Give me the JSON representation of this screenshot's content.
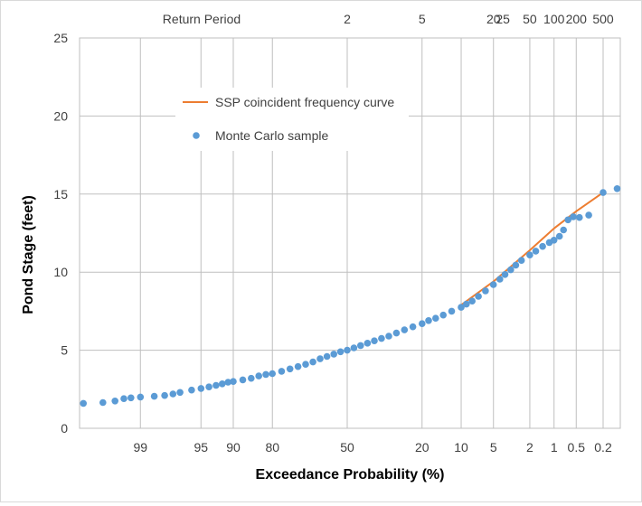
{
  "chart_data": {
    "type": "scatter",
    "title": "",
    "xlabel": "Exceedance Probability (%)",
    "ylabel": "Pond Stage (feet)",
    "x_scale": "normal-probability (reversed)",
    "ylim": [
      0,
      25
    ],
    "y_ticks": [
      0,
      5,
      10,
      15,
      20,
      25
    ],
    "x_ticks": [
      "99",
      "95",
      "90",
      "80",
      "50",
      "20",
      "10",
      "5",
      "2",
      "1",
      "0.5",
      "0.2"
    ],
    "top_axis": {
      "label": "Return Period",
      "ticks": [
        "2",
        "5",
        "25",
        "20",
        "50",
        "100",
        "200",
        "500"
      ]
    },
    "grid": true,
    "legend_position": "upper-left",
    "series": [
      {
        "name": "SSP coincident frequency curve",
        "kind": "line",
        "color": "#ed7d31",
        "points": [
          [
            10,
            7.9
          ],
          [
            5,
            9.4
          ],
          [
            2,
            11.4
          ],
          [
            1,
            12.8
          ],
          [
            0.5,
            13.9
          ],
          [
            0.2,
            15.1
          ]
        ]
      },
      {
        "name": "Monte Carlo sample",
        "kind": "scatter",
        "color": "#5b9bd5",
        "points": [
          [
            99.85,
            1.6
          ],
          [
            99.7,
            1.65
          ],
          [
            99.55,
            1.75
          ],
          [
            99.4,
            1.9
          ],
          [
            99.25,
            1.95
          ],
          [
            99,
            2.0
          ],
          [
            98.5,
            2.05
          ],
          [
            98,
            2.1
          ],
          [
            97.5,
            2.2
          ],
          [
            97,
            2.3
          ],
          [
            96,
            2.45
          ],
          [
            95,
            2.55
          ],
          [
            94,
            2.65
          ],
          [
            93,
            2.75
          ],
          [
            92,
            2.85
          ],
          [
            91,
            2.95
          ],
          [
            90,
            3.0
          ],
          [
            88,
            3.1
          ],
          [
            86,
            3.2
          ],
          [
            84,
            3.35
          ],
          [
            82,
            3.45
          ],
          [
            80,
            3.5
          ],
          [
            77,
            3.65
          ],
          [
            74,
            3.8
          ],
          [
            71,
            3.95
          ],
          [
            68,
            4.1
          ],
          [
            65,
            4.25
          ],
          [
            62,
            4.45
          ],
          [
            59,
            4.6
          ],
          [
            56,
            4.75
          ],
          [
            53,
            4.9
          ],
          [
            50,
            5.0
          ],
          [
            47,
            5.15
          ],
          [
            44,
            5.3
          ],
          [
            41,
            5.45
          ],
          [
            38,
            5.6
          ],
          [
            35,
            5.75
          ],
          [
            32,
            5.9
          ],
          [
            29,
            6.1
          ],
          [
            26,
            6.3
          ],
          [
            23,
            6.5
          ],
          [
            20,
            6.7
          ],
          [
            18,
            6.9
          ],
          [
            16,
            7.05
          ],
          [
            14,
            7.25
          ],
          [
            12,
            7.5
          ],
          [
            10,
            7.75
          ],
          [
            9,
            7.95
          ],
          [
            8,
            8.15
          ],
          [
            7,
            8.45
          ],
          [
            6,
            8.8
          ],
          [
            5,
            9.2
          ],
          [
            4.3,
            9.55
          ],
          [
            3.8,
            9.85
          ],
          [
            3.3,
            10.15
          ],
          [
            2.9,
            10.45
          ],
          [
            2.5,
            10.75
          ],
          [
            2.0,
            11.1
          ],
          [
            1.7,
            11.35
          ],
          [
            1.4,
            11.65
          ],
          [
            1.15,
            11.9
          ],
          [
            1.0,
            12.05
          ],
          [
            0.85,
            12.3
          ],
          [
            0.75,
            12.7
          ],
          [
            0.65,
            13.35
          ],
          [
            0.55,
            13.55
          ],
          [
            0.45,
            13.5
          ],
          [
            0.33,
            13.65
          ],
          [
            0.2,
            15.1
          ],
          [
            0.12,
            15.35
          ]
        ]
      }
    ]
  }
}
